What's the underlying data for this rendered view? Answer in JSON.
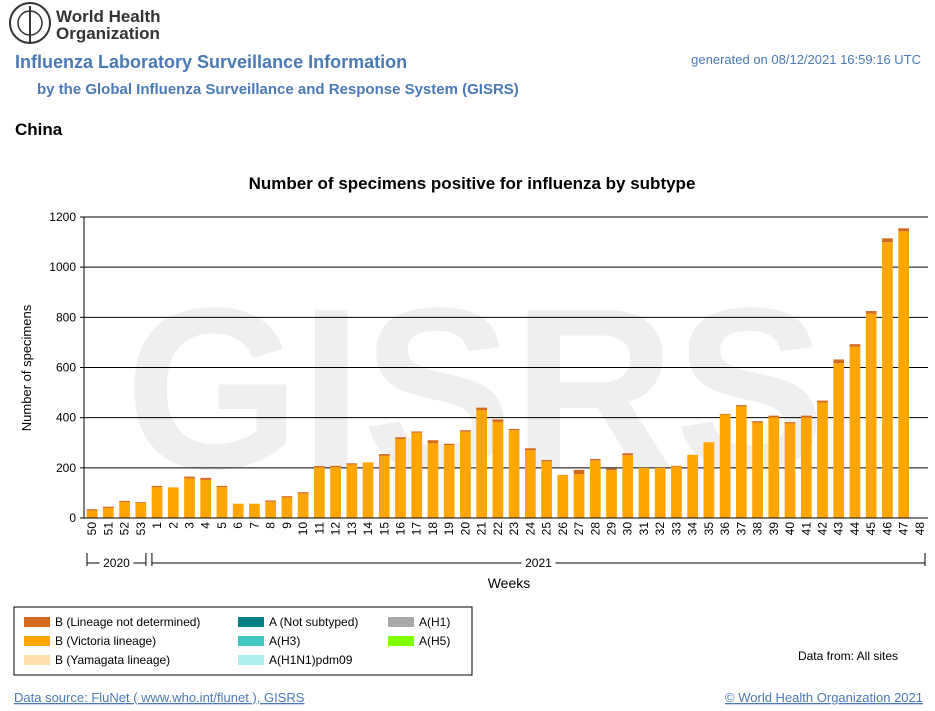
{
  "header": {
    "logo_text": [
      "World Health",
      "Organization"
    ],
    "title": "Influenza Laboratory Surveillance Information",
    "subtitle": "by the Global Influenza Surveillance and Response System (GISRS)",
    "generated": "generated on 08/12/2021 16:59:16 UTC",
    "country": "China"
  },
  "chart_data": {
    "type": "bar",
    "stacked": true,
    "title": "Number of specimens positive for influenza by subtype",
    "watermark": "GISRS",
    "y_label": "Number of specimens",
    "x_label": "Weeks",
    "categories": [
      "50",
      "51",
      "52",
      "53",
      "1",
      "2",
      "3",
      "4",
      "5",
      "6",
      "7",
      "8",
      "9",
      "10",
      "11",
      "12",
      "13",
      "14",
      "15",
      "16",
      "17",
      "18",
      "19",
      "20",
      "21",
      "22",
      "23",
      "24",
      "25",
      "26",
      "27",
      "28",
      "29",
      "30",
      "31",
      "32",
      "33",
      "34",
      "35",
      "36",
      "37",
      "38",
      "39",
      "40",
      "41",
      "42",
      "43",
      "44",
      "45",
      "46",
      "47",
      "48"
    ],
    "year_groups": [
      {
        "label": "2020",
        "from": "50",
        "to": "53"
      },
      {
        "label": "2021",
        "from": "1",
        "to": "48"
      }
    ],
    "ylim": [
      0,
      1200
    ],
    "yticks": [
      0,
      200,
      400,
      600,
      800,
      1000,
      1200
    ],
    "grid": true,
    "series": [
      {
        "name": "B (Lineage not determined)",
        "color": "#d4691f",
        "values": [
          5,
          5,
          5,
          3,
          5,
          0,
          7,
          8,
          5,
          0,
          0,
          5,
          5,
          5,
          5,
          5,
          5,
          0,
          7,
          7,
          5,
          12,
          5,
          6,
          10,
          10,
          5,
          8,
          5,
          0,
          17,
          5,
          7,
          8,
          0,
          0,
          3,
          0,
          0,
          3,
          5,
          6,
          6,
          5,
          6,
          8,
          15,
          10,
          10,
          15,
          12,
          null
        ]
      },
      {
        "name": "B (Victoria lineage)",
        "color": "#ffa500",
        "values": [
          30,
          40,
          63,
          60,
          123,
          122,
          158,
          152,
          123,
          57,
          57,
          65,
          82,
          98,
          202,
          203,
          213,
          222,
          248,
          315,
          340,
          298,
          291,
          344,
          430,
          383,
          350,
          270,
          226,
          172,
          175,
          230,
          190,
          250,
          200,
          200,
          205,
          252,
          302,
          412,
          445,
          380,
          402,
          377,
          402,
          460,
          617,
          683,
          815,
          1100,
          1143,
          null
        ]
      },
      {
        "name": "B (Yamagata lineage)",
        "color": "#ffdfb0",
        "values": [
          0,
          0,
          0,
          0,
          0,
          0,
          0,
          0,
          0,
          0,
          0,
          0,
          0,
          0,
          0,
          0,
          0,
          0,
          0,
          0,
          0,
          0,
          0,
          0,
          0,
          0,
          0,
          0,
          0,
          0,
          0,
          0,
          0,
          0,
          0,
          0,
          0,
          0,
          0,
          0,
          0,
          0,
          0,
          0,
          0,
          0,
          0,
          0,
          0,
          0,
          0,
          0
        ]
      },
      {
        "name": "A (Not subtyped)",
        "color": "#008080",
        "values": [
          0,
          0,
          0,
          0,
          0,
          0,
          0,
          0,
          0,
          0,
          0,
          0,
          0,
          0,
          0,
          0,
          0,
          0,
          0,
          0,
          0,
          0,
          0,
          0,
          0,
          0,
          0,
          0,
          0,
          0,
          0,
          0,
          0,
          0,
          0,
          0,
          0,
          0,
          0,
          0,
          0,
          0,
          0,
          0,
          0,
          0,
          0,
          0,
          0,
          0,
          0,
          0
        ]
      },
      {
        "name": "A(H3)",
        "color": "#40c8c0",
        "values": [
          0,
          0,
          0,
          0,
          0,
          0,
          0,
          0,
          0,
          0,
          0,
          0,
          0,
          0,
          0,
          0,
          0,
          0,
          0,
          0,
          0,
          0,
          0,
          0,
          0,
          0,
          0,
          0,
          0,
          0,
          0,
          0,
          0,
          0,
          0,
          0,
          0,
          0,
          0,
          0,
          0,
          0,
          0,
          0,
          0,
          0,
          0,
          0,
          0,
          0,
          0,
          0
        ]
      },
      {
        "name": "A(H1N1)pdm09",
        "color": "#b0eeee",
        "values": [
          0,
          0,
          0,
          0,
          0,
          0,
          0,
          0,
          0,
          0,
          0,
          0,
          0,
          0,
          0,
          0,
          0,
          0,
          0,
          0,
          0,
          0,
          0,
          0,
          0,
          0,
          0,
          0,
          0,
          0,
          0,
          0,
          0,
          0,
          0,
          0,
          0,
          0,
          0,
          0,
          0,
          0,
          0,
          0,
          0,
          0,
          0,
          0,
          0,
          0,
          0,
          0
        ]
      },
      {
        "name": "A(H1)",
        "color": "#a9a9a9",
        "values": [
          0,
          0,
          0,
          0,
          0,
          0,
          0,
          0,
          0,
          0,
          0,
          0,
          0,
          0,
          0,
          0,
          0,
          0,
          0,
          0,
          0,
          0,
          0,
          0,
          0,
          0,
          0,
          0,
          0,
          0,
          0,
          0,
          0,
          0,
          0,
          0,
          0,
          0,
          0,
          0,
          0,
          0,
          0,
          0,
          0,
          0,
          0,
          0,
          0,
          0,
          0,
          0
        ]
      },
      {
        "name": "A(H5)",
        "color": "#80ff00",
        "values": [
          0,
          0,
          0,
          0,
          0,
          0,
          0,
          0,
          0,
          0,
          0,
          0,
          0,
          0,
          0,
          0,
          0,
          0,
          0,
          0,
          0,
          0,
          0,
          0,
          0,
          0,
          0,
          0,
          0,
          0,
          0,
          0,
          0,
          0,
          0,
          0,
          0,
          0,
          0,
          0,
          0,
          0,
          0,
          0,
          0,
          0,
          0,
          0,
          0,
          0,
          0,
          0
        ]
      }
    ],
    "data_from": "Data from: All sites"
  },
  "footer": {
    "source": "Data source: FluNet ( www.who.int/flunet ), GISRS",
    "copyright": "© World Health Organization 2021"
  }
}
